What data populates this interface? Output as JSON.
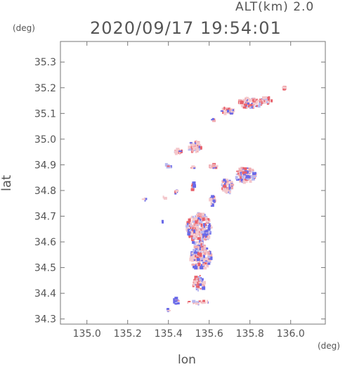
{
  "header": {
    "altitude": "ALT(km) 2.0",
    "datetime": "2020/09/17 19:54:01"
  },
  "chart_data": {
    "type": "heatmap",
    "xlabel": "lon",
    "ylabel": "lat",
    "xunit": "(deg)",
    "yunit": "(deg)",
    "xlim": [
      134.87,
      136.17
    ],
    "ylim": [
      34.28,
      35.38
    ],
    "xticks": [
      135.0,
      135.2,
      135.4,
      135.6,
      135.8,
      136.0
    ],
    "yticks": [
      34.3,
      34.4,
      34.5,
      34.6,
      34.7,
      34.8,
      34.9,
      35.0,
      35.1,
      35.2,
      35.3
    ],
    "xtick_labels": [
      "135.0",
      "135.2",
      "135.4",
      "135.6",
      "135.8",
      "136.0"
    ],
    "ytick_labels": [
      "34.3",
      "34.4",
      "34.5",
      "34.6",
      "34.7",
      "34.8",
      "34.9",
      "35.0",
      "35.1",
      "35.2",
      "35.3"
    ],
    "colors": {
      "positive": "#e8606a",
      "negative": "#6a6ae8",
      "neutral": "#f4c8cc"
    },
    "clusters": [
      {
        "lon": 135.97,
        "lat": 35.198,
        "rx": 0.006,
        "ry": 0.004,
        "n": 6,
        "tone": 0.4
      },
      {
        "lon": 135.88,
        "lat": 35.15,
        "rx": 0.03,
        "ry": 0.012,
        "n": 40,
        "tone": 0.3
      },
      {
        "lon": 135.8,
        "lat": 35.14,
        "rx": 0.06,
        "ry": 0.02,
        "n": 80,
        "tone": 0.25
      },
      {
        "lon": 135.69,
        "lat": 35.11,
        "rx": 0.03,
        "ry": 0.014,
        "n": 30,
        "tone": 0.3
      },
      {
        "lon": 135.62,
        "lat": 35.075,
        "rx": 0.01,
        "ry": 0.008,
        "n": 8,
        "tone": 0.3
      },
      {
        "lon": 135.53,
        "lat": 34.97,
        "rx": 0.03,
        "ry": 0.022,
        "n": 50,
        "tone": 0.3
      },
      {
        "lon": 135.45,
        "lat": 34.95,
        "rx": 0.02,
        "ry": 0.01,
        "n": 15,
        "tone": 0.2
      },
      {
        "lon": 135.4,
        "lat": 34.895,
        "rx": 0.012,
        "ry": 0.01,
        "n": 10,
        "tone": 0.0
      },
      {
        "lon": 135.62,
        "lat": 34.895,
        "rx": 0.02,
        "ry": 0.01,
        "n": 15,
        "tone": 0.2
      },
      {
        "lon": 135.52,
        "lat": 34.89,
        "rx": 0.01,
        "ry": 0.006,
        "n": 6,
        "tone": 0.0
      },
      {
        "lon": 135.78,
        "lat": 34.86,
        "rx": 0.05,
        "ry": 0.03,
        "n": 90,
        "tone": 0.0
      },
      {
        "lon": 135.69,
        "lat": 34.82,
        "rx": 0.03,
        "ry": 0.03,
        "n": 50,
        "tone": 0.0
      },
      {
        "lon": 135.52,
        "lat": 34.82,
        "rx": 0.008,
        "ry": 0.02,
        "n": 12,
        "tone": 0.0
      },
      {
        "lon": 135.44,
        "lat": 34.795,
        "rx": 0.01,
        "ry": 0.008,
        "n": 6,
        "tone": -0.2
      },
      {
        "lon": 135.38,
        "lat": 34.77,
        "rx": 0.006,
        "ry": 0.008,
        "n": 4,
        "tone": -0.4
      },
      {
        "lon": 135.62,
        "lat": 34.76,
        "rx": 0.014,
        "ry": 0.02,
        "n": 15,
        "tone": -0.2
      },
      {
        "lon": 135.28,
        "lat": 34.77,
        "rx": 0.01,
        "ry": 0.01,
        "n": 4,
        "tone": -0.5
      },
      {
        "lon": 135.55,
        "lat": 34.65,
        "rx": 0.06,
        "ry": 0.06,
        "n": 220,
        "tone": 0.0
      },
      {
        "lon": 135.56,
        "lat": 34.54,
        "rx": 0.05,
        "ry": 0.05,
        "n": 150,
        "tone": -0.05
      },
      {
        "lon": 135.55,
        "lat": 34.44,
        "rx": 0.03,
        "ry": 0.03,
        "n": 50,
        "tone": 0.1
      },
      {
        "lon": 135.44,
        "lat": 34.37,
        "rx": 0.015,
        "ry": 0.012,
        "n": 12,
        "tone": -0.3
      },
      {
        "lon": 135.55,
        "lat": 34.365,
        "rx": 0.06,
        "ry": 0.006,
        "n": 20,
        "tone": 0.0
      },
      {
        "lon": 135.4,
        "lat": 34.335,
        "rx": 0.006,
        "ry": 0.004,
        "n": 4,
        "tone": -0.5
      },
      {
        "lon": 135.37,
        "lat": 34.68,
        "rx": 0.003,
        "ry": 0.003,
        "n": 2,
        "tone": -0.5
      }
    ]
  }
}
